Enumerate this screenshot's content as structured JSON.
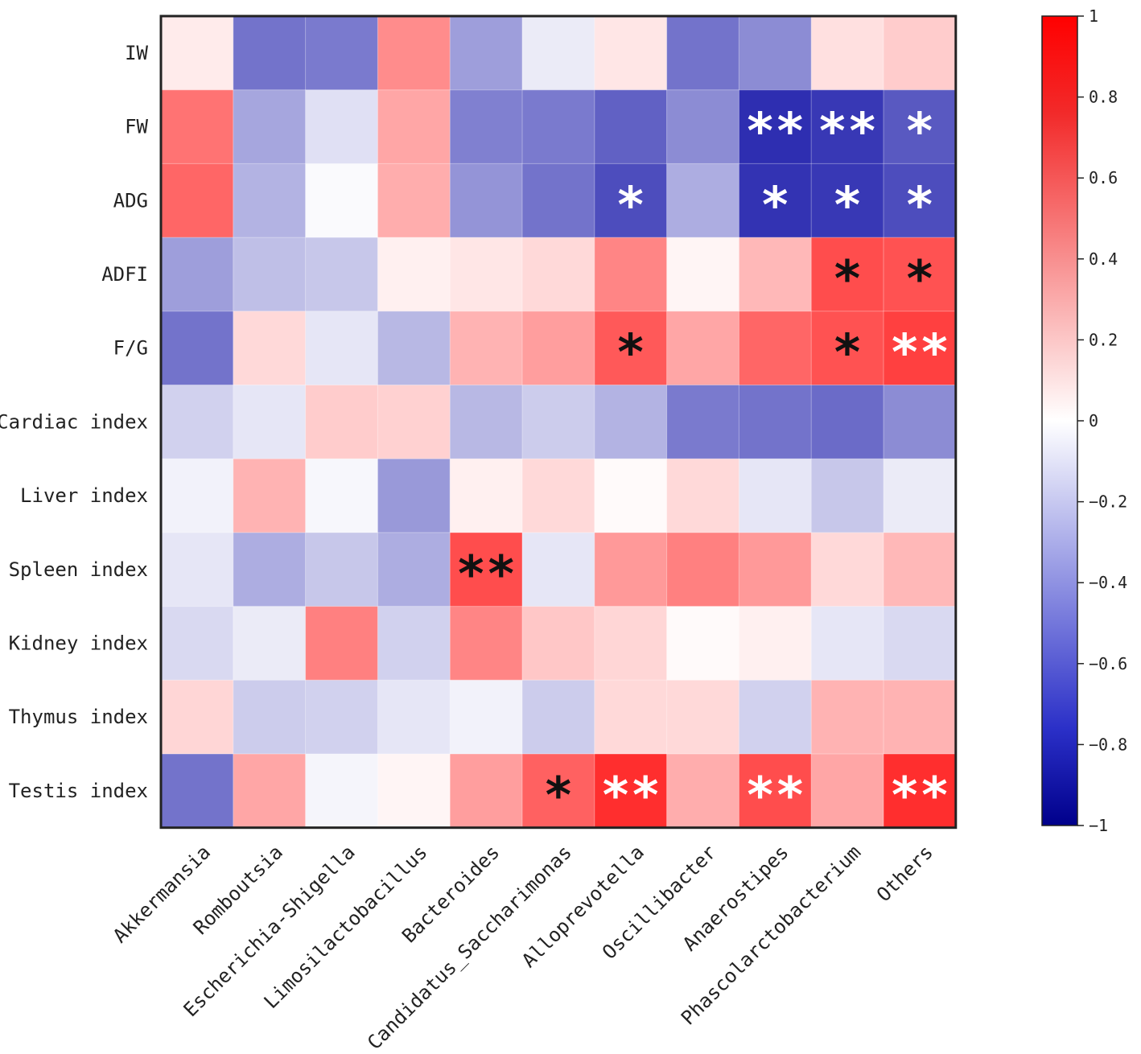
{
  "chart_data": {
    "type": "heatmap",
    "title": "",
    "rows": [
      "IW",
      "FW",
      "ADG",
      "ADFI",
      "F/G",
      "Cardiac index",
      "Liver index",
      "Spleen index",
      "Kidney index",
      "Thymus index",
      "Testis index"
    ],
    "columns": [
      "Akkermansia",
      "Romboutsia",
      "Escherichia-Shigella",
      "Limosilactobacillus",
      "Bacteroides",
      "Candidatus_Saccharimonas",
      "Alloprevotella",
      "Oscillibacter",
      "Anaerostipes",
      "Phascolarctobacterium",
      "Others"
    ],
    "values": [
      [
        0.08,
        -0.55,
        -0.52,
        0.45,
        -0.38,
        -0.08,
        0.1,
        -0.55,
        -0.45,
        0.12,
        0.2
      ],
      [
        0.55,
        -0.35,
        -0.12,
        0.35,
        -0.5,
        -0.52,
        -0.62,
        -0.45,
        -0.82,
        -0.78,
        -0.65
      ],
      [
        0.6,
        -0.3,
        -0.02,
        0.32,
        -0.42,
        -0.55,
        -0.7,
        -0.32,
        -0.8,
        -0.78,
        -0.7
      ],
      [
        -0.38,
        -0.25,
        -0.22,
        0.06,
        0.1,
        0.15,
        0.48,
        0.04,
        0.28,
        0.7,
        0.68
      ],
      [
        -0.55,
        0.15,
        -0.1,
        -0.28,
        0.3,
        0.38,
        0.65,
        0.35,
        0.6,
        0.68,
        0.75
      ],
      [
        -0.18,
        -0.1,
        0.2,
        0.18,
        -0.28,
        -0.2,
        -0.3,
        -0.52,
        -0.55,
        -0.58,
        -0.45
      ],
      [
        -0.05,
        0.3,
        -0.03,
        -0.4,
        0.06,
        0.15,
        0.02,
        0.15,
        -0.1,
        -0.22,
        -0.08
      ],
      [
        -0.1,
        -0.32,
        -0.22,
        -0.32,
        0.7,
        -0.1,
        0.4,
        0.5,
        0.4,
        0.15,
        0.28
      ],
      [
        -0.15,
        -0.08,
        0.5,
        -0.18,
        0.48,
        0.22,
        0.16,
        0.02,
        0.06,
        -0.1,
        -0.15
      ],
      [
        0.16,
        -0.2,
        -0.18,
        -0.1,
        -0.05,
        -0.2,
        0.15,
        0.15,
        -0.18,
        0.3,
        0.3
      ],
      [
        -0.55,
        0.35,
        -0.04,
        0.04,
        0.38,
        0.62,
        0.82,
        0.32,
        0.7,
        0.35,
        0.82
      ]
    ],
    "significance": [
      [
        "",
        "",
        "",
        "",
        "",
        "",
        "",
        "",
        "",
        "",
        ""
      ],
      [
        "",
        "",
        "",
        "",
        "",
        "",
        "",
        "",
        "**",
        "**",
        "*"
      ],
      [
        "",
        "",
        "",
        "",
        "",
        "",
        "*",
        "",
        "*",
        "*",
        "*"
      ],
      [
        "",
        "",
        "",
        "",
        "",
        "",
        "",
        "",
        "",
        "*",
        "*"
      ],
      [
        "",
        "",
        "",
        "",
        "",
        "",
        "*",
        "",
        "",
        "*",
        "**"
      ],
      [
        "",
        "",
        "",
        "",
        "",
        "",
        "",
        "",
        "",
        "",
        ""
      ],
      [
        "",
        "",
        "",
        "",
        "",
        "",
        "",
        "",
        "",
        "",
        ""
      ],
      [
        "",
        "",
        "",
        "",
        "**",
        "",
        "",
        "",
        "",
        "",
        ""
      ],
      [
        "",
        "",
        "",
        "",
        "",
        "",
        "",
        "",
        "",
        "",
        ""
      ],
      [
        "",
        "",
        "",
        "",
        "",
        "",
        "",
        "",
        "",
        "",
        ""
      ],
      [
        "",
        "",
        "",
        "",
        "",
        "*",
        "**",
        "",
        "**",
        "",
        "**"
      ]
    ],
    "star_colors": [
      [
        "",
        "",
        "",
        "",
        "",
        "",
        "",
        "",
        "",
        "",
        ""
      ],
      [
        "",
        "",
        "",
        "",
        "",
        "",
        "",
        "",
        "white",
        "white",
        "white"
      ],
      [
        "",
        "",
        "",
        "",
        "",
        "",
        "white",
        "",
        "white",
        "white",
        "white"
      ],
      [
        "",
        "",
        "",
        "",
        "",
        "",
        "",
        "",
        "",
        "black",
        "black"
      ],
      [
        "",
        "",
        "",
        "",
        "",
        "",
        "black",
        "",
        "",
        "black",
        "white"
      ],
      [
        "",
        "",
        "",
        "",
        "",
        "",
        "",
        "",
        "",
        "",
        ""
      ],
      [
        "",
        "",
        "",
        "",
        "",
        "",
        "",
        "",
        "",
        "",
        ""
      ],
      [
        "",
        "",
        "",
        "",
        "black",
        "",
        "",
        "",
        "",
        "",
        ""
      ],
      [
        "",
        "",
        "",
        "",
        "",
        "",
        "",
        "",
        "",
        "",
        ""
      ],
      [
        "",
        "",
        "",
        "",
        "",
        "",
        "",
        "",
        "",
        "",
        ""
      ],
      [
        "",
        "",
        "",
        "",
        "",
        "black",
        "white",
        "",
        "white",
        "",
        "white"
      ]
    ],
    "colorbar": {
      "range": [
        -1,
        1
      ],
      "ticks": [
        1,
        0.8,
        0.6,
        0.4,
        0.2,
        0,
        -0.2,
        -0.4,
        -0.6,
        -0.8,
        -1
      ],
      "tick_labels": [
        "1",
        "0.8",
        "0.6",
        "0.4",
        "0.2",
        "0",
        "−0.2",
        "−0.4",
        "−0.6",
        "−0.8",
        "−1"
      ],
      "colors": {
        "negative": "#0000a0",
        "zero": "#ffffff",
        "positive": "#ff0000"
      }
    }
  }
}
